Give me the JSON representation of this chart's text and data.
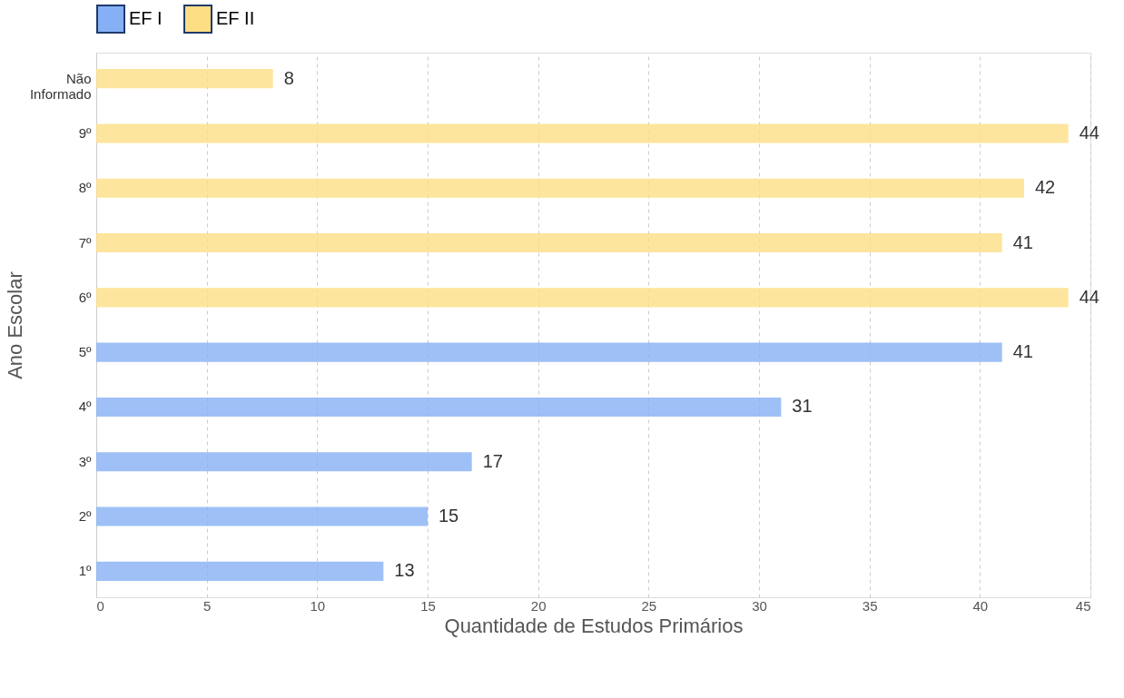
{
  "chart_data": {
    "type": "bar",
    "orientation": "horizontal",
    "xlabel": "Quantidade de Estudos Primários",
    "ylabel": "Ano Escolar",
    "categories": [
      "Não Informado",
      "9º",
      "8º",
      "7º",
      "6º",
      "5º",
      "4º",
      "3º",
      "2º",
      "1º"
    ],
    "series": [
      {
        "name": "EF I",
        "color": "#86b0f5",
        "values": [
          null,
          null,
          null,
          null,
          null,
          41,
          31,
          17,
          15,
          13
        ]
      },
      {
        "name": "EF  II",
        "color": "#fdde85",
        "values": [
          8,
          44,
          42,
          41,
          44,
          null,
          null,
          null,
          null,
          null
        ]
      }
    ],
    "xlim": [
      0,
      45
    ],
    "xticks": [
      0,
      5,
      10,
      15,
      20,
      25,
      30,
      35,
      40,
      45
    ],
    "grid": "x",
    "legend": "top",
    "data_labels": true
  }
}
